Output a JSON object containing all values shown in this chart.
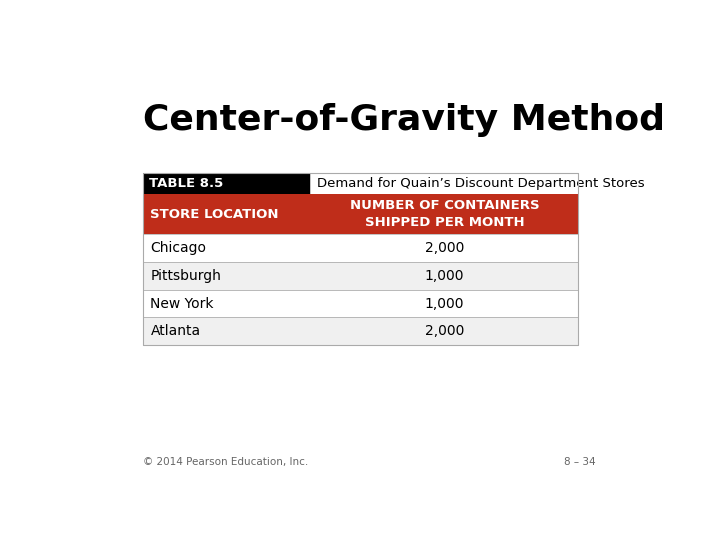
{
  "title": "Center-of-Gravity Method",
  "table_label": "TABLE 8.5",
  "table_title": "Demand for Quain’s Discount Department Stores",
  "col1_header": "STORE LOCATION",
  "col2_header": "NUMBER OF CONTAINERS\nSHIPPED PER MONTH",
  "rows": [
    [
      "Chicago",
      "2,000"
    ],
    [
      "Pittsburgh",
      "1,000"
    ],
    [
      "New York",
      "1,000"
    ],
    [
      "Atlanta",
      "2,000"
    ]
  ],
  "footer_left": "© 2014 Pearson Education, Inc.",
  "footer_right": "8 – 34",
  "bg_color": "#ffffff",
  "title_color": "#000000",
  "header_black_bg": "#000000",
  "header_red_bg": "#bf2d1a",
  "header_text_color": "#ffffff",
  "table_label_color": "#ffffff",
  "row_bg_odd": "#f0f0f0",
  "row_bg_even": "#ffffff",
  "border_color": "#aaaaaa",
  "footer_color": "#666666"
}
